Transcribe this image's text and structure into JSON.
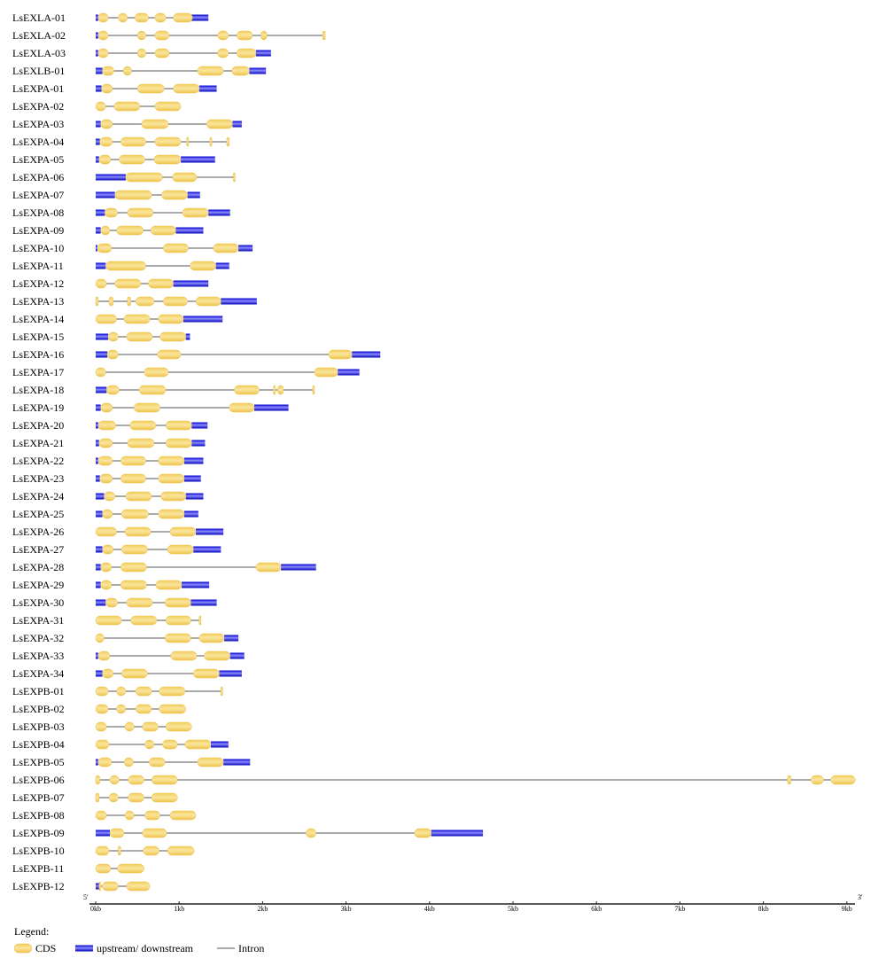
{
  "colors": {
    "cds": "#f7d873",
    "cds_edge": "#e7c152",
    "utr": "#3333dd",
    "intron": "#777777",
    "axis": "#222222"
  },
  "axis": {
    "start_label": "5'",
    "end_label": "3'",
    "unit": "kb",
    "max_kb": 9.1,
    "ticks": [
      {
        "value": 0,
        "label": "0kb"
      },
      {
        "value": 1,
        "label": "1kb"
      },
      {
        "value": 2,
        "label": "2kb"
      },
      {
        "value": 3,
        "label": "3kb"
      },
      {
        "value": 4,
        "label": "4kb"
      },
      {
        "value": 5,
        "label": "5kb"
      },
      {
        "value": 6,
        "label": "6kb"
      },
      {
        "value": 7,
        "label": "7kb"
      },
      {
        "value": 8,
        "label": "8kb"
      },
      {
        "value": 9,
        "label": "9kb"
      }
    ]
  },
  "legend": {
    "title": "Legend:",
    "items": [
      {
        "type": "cds",
        "label": "CDS"
      },
      {
        "type": "utr",
        "label": "upstream/ downstream"
      },
      {
        "type": "intron",
        "label": "Intron"
      }
    ]
  },
  "genes": [
    {
      "name": "LsEXLA-01",
      "length": 1.35,
      "utr": [
        [
          0,
          0.03
        ],
        [
          1.1,
          1.35
        ]
      ],
      "cds": [
        [
          0.03,
          0.15
        ],
        [
          0.27,
          0.38
        ],
        [
          0.47,
          0.63
        ],
        [
          0.71,
          0.84
        ],
        [
          0.93,
          1.16
        ]
      ]
    },
    {
      "name": "LsEXLA-02",
      "length": 2.75,
      "utr": [
        [
          0,
          0.03
        ]
      ],
      "cds": [
        [
          0.03,
          0.15
        ],
        [
          0.5,
          0.6
        ],
        [
          0.71,
          0.88
        ],
        [
          1.46,
          1.59
        ],
        [
          1.69,
          1.88
        ],
        [
          1.98,
          2.05
        ],
        [
          2.72,
          2.75
        ]
      ]
    },
    {
      "name": "LsEXLA-03",
      "length": 2.1,
      "utr": [
        [
          0,
          0.03
        ],
        [
          1.92,
          2.1
        ]
      ],
      "cds": [
        [
          0.03,
          0.15
        ],
        [
          0.5,
          0.6
        ],
        [
          0.71,
          0.88
        ],
        [
          1.46,
          1.59
        ],
        [
          1.69,
          1.92
        ]
      ]
    },
    {
      "name": "LsEXLB-01",
      "length": 2.04,
      "utr": [
        [
          0,
          0.08
        ],
        [
          1.84,
          2.04
        ]
      ],
      "cds": [
        [
          0.08,
          0.22
        ],
        [
          0.33,
          0.43
        ],
        [
          1.22,
          1.53
        ],
        [
          1.63,
          1.84
        ]
      ]
    },
    {
      "name": "LsEXPA-01",
      "length": 1.45,
      "utr": [
        [
          0,
          0.07
        ],
        [
          1.24,
          1.45
        ]
      ],
      "cds": [
        [
          0.07,
          0.2
        ],
        [
          0.5,
          0.82
        ],
        [
          0.93,
          1.24
        ]
      ]
    },
    {
      "name": "LsEXPA-02",
      "length": 1.02,
      "utr": [],
      "cds": [
        [
          0,
          0.12
        ],
        [
          0.22,
          0.53
        ],
        [
          0.71,
          1.02
        ]
      ]
    },
    {
      "name": "LsEXPA-03",
      "length": 1.75,
      "utr": [
        [
          0,
          0.06
        ],
        [
          1.64,
          1.75
        ]
      ],
      "cds": [
        [
          0.06,
          0.2
        ],
        [
          0.55,
          0.87
        ],
        [
          1.33,
          1.64
        ]
      ]
    },
    {
      "name": "LsEXPA-04",
      "length": 1.6,
      "utr": [
        [
          0,
          0.05
        ]
      ],
      "cds": [
        [
          0.05,
          0.2
        ],
        [
          0.3,
          0.6
        ],
        [
          0.71,
          1.02
        ],
        [
          1.09,
          1.11
        ],
        [
          1.37,
          1.39
        ],
        [
          1.57,
          1.6
        ]
      ]
    },
    {
      "name": "LsEXPA-05",
      "length": 1.43,
      "utr": [
        [
          0,
          0.04
        ],
        [
          1.02,
          1.43
        ]
      ],
      "cds": [
        [
          0.04,
          0.18
        ],
        [
          0.28,
          0.59
        ],
        [
          0.7,
          1.02
        ]
      ]
    },
    {
      "name": "LsEXPA-06",
      "length": 1.67,
      "utr": [
        [
          0,
          0.36
        ]
      ],
      "cds": [
        [
          0.36,
          0.8
        ],
        [
          0.92,
          1.21
        ],
        [
          1.65,
          1.67
        ]
      ]
    },
    {
      "name": "LsEXPA-07",
      "length": 1.25,
      "utr": [
        [
          0,
          0.23
        ],
        [
          1.1,
          1.25
        ]
      ],
      "cds": [
        [
          0.23,
          0.67
        ],
        [
          0.79,
          1.1
        ]
      ]
    },
    {
      "name": "LsEXPA-08",
      "length": 1.61,
      "utr": [
        [
          0,
          0.11
        ],
        [
          1.35,
          1.61
        ]
      ],
      "cds": [
        [
          0.11,
          0.26
        ],
        [
          0.38,
          0.69
        ],
        [
          1.04,
          1.35
        ]
      ]
    },
    {
      "name": "LsEXPA-09",
      "length": 1.29,
      "utr": [
        [
          0,
          0.06
        ],
        [
          0.96,
          1.29
        ]
      ],
      "cds": [
        [
          0.06,
          0.17
        ],
        [
          0.25,
          0.57
        ],
        [
          0.66,
          0.96
        ]
      ]
    },
    {
      "name": "LsEXPA-10",
      "length": 1.88,
      "utr": [
        [
          0,
          0.02
        ],
        [
          1.71,
          1.88
        ]
      ],
      "cds": [
        [
          0.02,
          0.19
        ],
        [
          0.81,
          1.11
        ],
        [
          1.41,
          1.71
        ]
      ]
    },
    {
      "name": "LsEXPA-11",
      "length": 1.6,
      "utr": [
        [
          0,
          0.12
        ],
        [
          1.44,
          1.6
        ]
      ],
      "cds": [
        [
          0.12,
          0.6
        ],
        [
          1.13,
          1.44
        ]
      ]
    },
    {
      "name": "LsEXPA-12",
      "length": 1.35,
      "utr": [
        [
          0.93,
          1.35
        ]
      ],
      "cds": [
        [
          0,
          0.13
        ],
        [
          0.23,
          0.54
        ],
        [
          0.63,
          0.93
        ]
      ]
    },
    {
      "name": "LsEXPA-13",
      "length": 1.93,
      "utr": [
        [
          1.5,
          1.93
        ]
      ],
      "cds": [
        [
          0,
          0.03
        ],
        [
          0.16,
          0.21
        ],
        [
          0.38,
          0.42
        ],
        [
          0.48,
          0.7
        ],
        [
          0.81,
          1.1
        ],
        [
          1.2,
          1.5
        ]
      ]
    },
    {
      "name": "LsEXPA-14",
      "length": 1.52,
      "utr": [
        [
          1.05,
          1.52
        ]
      ],
      "cds": [
        [
          0,
          0.25
        ],
        [
          0.34,
          0.65
        ],
        [
          0.75,
          1.05
        ]
      ]
    },
    {
      "name": "LsEXPA-15",
      "length": 1.13,
      "utr": [
        [
          0,
          0.15
        ],
        [
          1.08,
          1.13
        ]
      ],
      "cds": [
        [
          0.15,
          0.27
        ],
        [
          0.37,
          0.68
        ],
        [
          0.77,
          1.08
        ]
      ]
    },
    {
      "name": "LsEXPA-16",
      "length": 3.41,
      "utr": [
        [
          0,
          0.14
        ],
        [
          3.07,
          3.41
        ]
      ],
      "cds": [
        [
          0.14,
          0.27
        ],
        [
          0.74,
          1.02
        ],
        [
          2.79,
          3.07
        ]
      ]
    },
    {
      "name": "LsEXPA-17",
      "length": 3.16,
      "utr": [
        [
          2.9,
          3.16
        ]
      ],
      "cds": [
        [
          0,
          0.12
        ],
        [
          0.58,
          0.87
        ],
        [
          2.62,
          2.9
        ]
      ]
    },
    {
      "name": "LsEXPA-18",
      "length": 2.62,
      "utr": [
        [
          0,
          0.13
        ]
      ],
      "cds": [
        [
          0.13,
          0.28
        ],
        [
          0.52,
          0.84
        ],
        [
          1.66,
          1.96
        ],
        [
          2.13,
          2.15
        ],
        [
          2.18,
          2.25
        ],
        [
          2.6,
          2.62
        ]
      ]
    },
    {
      "name": "LsEXPA-19",
      "length": 2.31,
      "utr": [
        [
          0,
          0.06
        ],
        [
          1.9,
          2.31
        ]
      ],
      "cds": [
        [
          0.06,
          0.2
        ],
        [
          0.46,
          0.77
        ],
        [
          1.6,
          1.9
        ]
      ]
    },
    {
      "name": "LsEXPA-20",
      "length": 1.34,
      "utr": [
        [
          0,
          0.03
        ],
        [
          1.15,
          1.34
        ]
      ],
      "cds": [
        [
          0.03,
          0.24
        ],
        [
          0.41,
          0.72
        ],
        [
          0.84,
          1.15
        ]
      ]
    },
    {
      "name": "LsEXPA-21",
      "length": 1.31,
      "utr": [
        [
          0,
          0.04
        ],
        [
          1.15,
          1.31
        ]
      ],
      "cds": [
        [
          0.04,
          0.2
        ],
        [
          0.38,
          0.7
        ],
        [
          0.84,
          1.15
        ]
      ]
    },
    {
      "name": "LsEXPA-22",
      "length": 1.29,
      "utr": [
        [
          0,
          0.03
        ],
        [
          1.06,
          1.29
        ]
      ],
      "cds": [
        [
          0.03,
          0.2
        ],
        [
          0.3,
          0.6
        ],
        [
          0.75,
          1.06
        ]
      ]
    },
    {
      "name": "LsEXPA-23",
      "length": 1.26,
      "utr": [
        [
          0,
          0.05
        ],
        [
          1.06,
          1.26
        ]
      ],
      "cds": [
        [
          0.05,
          0.2
        ],
        [
          0.3,
          0.6
        ],
        [
          0.75,
          1.06
        ]
      ]
    },
    {
      "name": "LsEXPA-24",
      "length": 1.29,
      "utr": [
        [
          0,
          0.1
        ],
        [
          1.08,
          1.29
        ]
      ],
      "cds": [
        [
          0.1,
          0.23
        ],
        [
          0.36,
          0.67
        ],
        [
          0.78,
          1.08
        ]
      ]
    },
    {
      "name": "LsEXPA-25",
      "length": 1.23,
      "utr": [
        [
          0,
          0.08
        ],
        [
          1.06,
          1.23
        ]
      ],
      "cds": [
        [
          0.08,
          0.2
        ],
        [
          0.31,
          0.63
        ],
        [
          0.75,
          1.06
        ]
      ]
    },
    {
      "name": "LsEXPA-26",
      "length": 1.53,
      "utr": [
        [
          1.2,
          1.53
        ]
      ],
      "cds": [
        [
          0,
          0.25
        ],
        [
          0.35,
          0.66
        ],
        [
          0.89,
          1.2
        ]
      ]
    },
    {
      "name": "LsEXPA-27",
      "length": 1.5,
      "utr": [
        [
          0,
          0.08
        ],
        [
          1.17,
          1.5
        ]
      ],
      "cds": [
        [
          0.08,
          0.21
        ],
        [
          0.31,
          0.62
        ],
        [
          0.86,
          1.17
        ]
      ]
    },
    {
      "name": "LsEXPA-28",
      "length": 2.64,
      "utr": [
        [
          0,
          0.06
        ],
        [
          2.22,
          2.64
        ]
      ],
      "cds": [
        [
          0.06,
          0.19
        ],
        [
          0.3,
          0.61
        ],
        [
          1.92,
          2.22
        ]
      ]
    },
    {
      "name": "LsEXPA-29",
      "length": 1.36,
      "utr": [
        [
          0,
          0.06
        ],
        [
          1.03,
          1.36
        ]
      ],
      "cds": [
        [
          0.06,
          0.19
        ],
        [
          0.3,
          0.61
        ],
        [
          0.72,
          1.03
        ]
      ]
    },
    {
      "name": "LsEXPA-30",
      "length": 1.45,
      "utr": [
        [
          0,
          0.12
        ],
        [
          1.14,
          1.45
        ]
      ],
      "cds": [
        [
          0.12,
          0.26
        ],
        [
          0.37,
          0.68
        ],
        [
          0.83,
          1.14
        ]
      ]
    },
    {
      "name": "LsEXPA-31",
      "length": 1.26,
      "utr": [],
      "cds": [
        [
          0,
          0.31
        ],
        [
          0.42,
          0.73
        ],
        [
          0.84,
          1.14
        ],
        [
          1.24,
          1.26
        ]
      ]
    },
    {
      "name": "LsEXPA-32",
      "length": 1.71,
      "utr": [
        [
          1.54,
          1.71
        ]
      ],
      "cds": [
        [
          0,
          0.1
        ],
        [
          0.83,
          1.14
        ],
        [
          1.24,
          1.54
        ]
      ]
    },
    {
      "name": "LsEXPA-33",
      "length": 1.78,
      "utr": [
        [
          0,
          0.03
        ],
        [
          1.61,
          1.78
        ]
      ],
      "cds": [
        [
          0.03,
          0.17
        ],
        [
          0.9,
          1.21
        ],
        [
          1.3,
          1.61
        ]
      ]
    },
    {
      "name": "LsEXPA-34",
      "length": 1.75,
      "utr": [
        [
          0,
          0.08
        ],
        [
          1.48,
          1.75
        ]
      ],
      "cds": [
        [
          0.08,
          0.21
        ],
        [
          0.31,
          0.62
        ],
        [
          1.17,
          1.48
        ]
      ]
    },
    {
      "name": "LsEXPB-01",
      "length": 1.52,
      "utr": [],
      "cds": [
        [
          0,
          0.15
        ],
        [
          0.25,
          0.36
        ],
        [
          0.48,
          0.67
        ],
        [
          0.76,
          1.07
        ],
        [
          1.5,
          1.52
        ]
      ]
    },
    {
      "name": "LsEXPB-02",
      "length": 1.08,
      "utr": [],
      "cds": [
        [
          0,
          0.15
        ],
        [
          0.25,
          0.36
        ],
        [
          0.48,
          0.67
        ],
        [
          0.76,
          1.08
        ]
      ]
    },
    {
      "name": "LsEXPB-03",
      "length": 1.15,
      "utr": [],
      "cds": [
        [
          0,
          0.13
        ],
        [
          0.35,
          0.46
        ],
        [
          0.56,
          0.75
        ],
        [
          0.84,
          1.15
        ]
      ]
    },
    {
      "name": "LsEXPB-04",
      "length": 1.59,
      "utr": [
        [
          1.38,
          1.59
        ]
      ],
      "cds": [
        [
          0,
          0.16
        ],
        [
          0.59,
          0.7
        ],
        [
          0.8,
          0.98
        ],
        [
          1.07,
          1.38
        ]
      ]
    },
    {
      "name": "LsEXPB-05",
      "length": 1.85,
      "utr": [
        [
          0,
          0.03
        ],
        [
          1.53,
          1.85
        ]
      ],
      "cds": [
        [
          0.03,
          0.19
        ],
        [
          0.34,
          0.45
        ],
        [
          0.64,
          0.83
        ],
        [
          1.22,
          1.53
        ]
      ]
    },
    {
      "name": "LsEXPB-06",
      "length": 9.1,
      "utr": [],
      "cds": [
        [
          0,
          0.05
        ],
        [
          0.17,
          0.28
        ],
        [
          0.39,
          0.58
        ],
        [
          0.67,
          0.98
        ],
        [
          8.29,
          8.33
        ],
        [
          8.57,
          8.72
        ],
        [
          8.81,
          9.1
        ]
      ]
    },
    {
      "name": "LsEXPB-07",
      "length": 0.98,
      "utr": [],
      "cds": [
        [
          0,
          0.04
        ],
        [
          0.16,
          0.27
        ],
        [
          0.39,
          0.58
        ],
        [
          0.67,
          0.98
        ]
      ]
    },
    {
      "name": "LsEXPB-08",
      "length": 1.2,
      "utr": [],
      "cds": [
        [
          0,
          0.13
        ],
        [
          0.35,
          0.46
        ],
        [
          0.59,
          0.77
        ],
        [
          0.89,
          1.2
        ]
      ]
    },
    {
      "name": "LsEXPB-09",
      "length": 4.64,
      "utr": [
        [
          0,
          0.17
        ],
        [
          4.02,
          4.64
        ]
      ],
      "cds": [
        [
          0.17,
          0.34
        ],
        [
          0.56,
          0.85
        ],
        [
          2.52,
          2.64
        ],
        [
          3.82,
          4.02
        ]
      ]
    },
    {
      "name": "LsEXPB-10",
      "length": 1.18,
      "utr": [],
      "cds": [
        [
          0,
          0.16
        ],
        [
          0.27,
          0.3
        ],
        [
          0.57,
          0.76
        ],
        [
          0.86,
          1.18
        ]
      ]
    },
    {
      "name": "LsEXPB-11",
      "length": 0.58,
      "utr": [],
      "cds": [
        [
          0,
          0.18
        ],
        [
          0.26,
          0.58
        ]
      ]
    },
    {
      "name": "LsEXPB-12",
      "length": 0.65,
      "utr": [
        [
          0,
          0.04
        ]
      ],
      "cds": [
        [
          0.04,
          0.05
        ],
        [
          0.08,
          0.27
        ],
        [
          0.37,
          0.65
        ]
      ]
    }
  ]
}
